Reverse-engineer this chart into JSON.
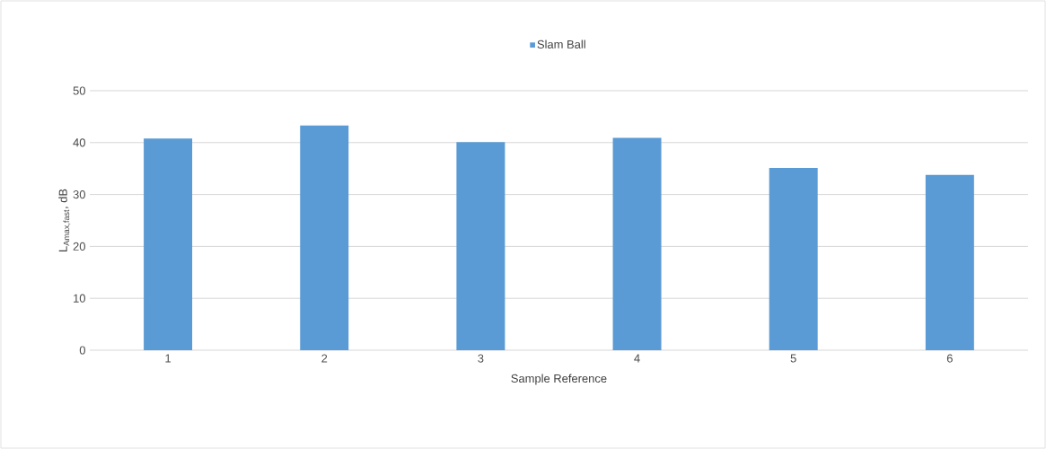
{
  "chart_data": {
    "type": "bar",
    "xlabel": "Sample Reference",
    "ylabel": "L$_{Amax,fast}$, dB",
    "categories": [
      "1",
      "2",
      "3",
      "4",
      "5",
      "6"
    ],
    "series": [
      {
        "name": "Slam Ball",
        "color": "#5b9bd5",
        "values": [
          40.8,
          43.3,
          40.1,
          40.9,
          35.1,
          33.8
        ]
      }
    ],
    "ylim": [
      0,
      50
    ],
    "yticks": [
      0,
      10,
      20,
      30,
      40,
      50
    ],
    "grid": "y",
    "legend": "top"
  }
}
